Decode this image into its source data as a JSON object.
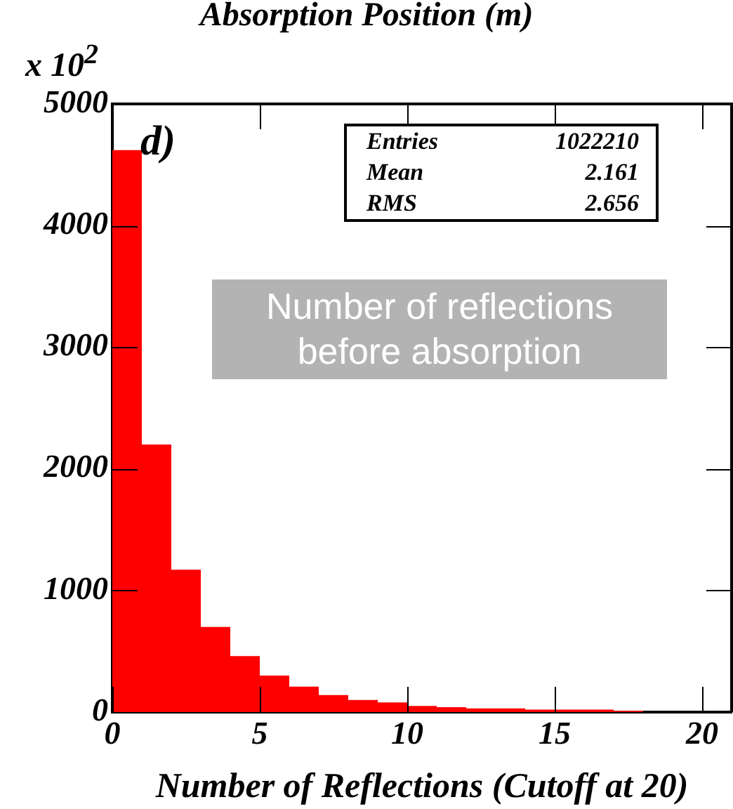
{
  "chart_data": {
    "type": "histogram",
    "title": "Absorption Position (m)",
    "xlabel": "Number of Reflections (Cutoff at 20)",
    "bins": [
      0,
      1,
      2,
      3,
      4,
      5,
      6,
      7,
      8,
      9,
      10,
      11,
      12,
      13,
      14,
      15,
      16,
      17,
      18,
      19,
      20,
      21
    ],
    "values": [
      4620,
      2200,
      1170,
      700,
      460,
      300,
      210,
      140,
      100,
      80,
      50,
      40,
      30,
      30,
      20,
      20,
      20,
      10,
      0,
      0,
      0
    ],
    "color": "#ff0000",
    "xlim": [
      0,
      21
    ],
    "xticks": [
      0,
      5,
      10,
      15,
      20
    ],
    "ylim": [
      0,
      5000
    ],
    "yticks": [
      0,
      1000,
      2000,
      3000,
      4000,
      5000
    ],
    "grid": false,
    "legend": false,
    "annotations": [
      "x 10$^{2}$",
      "d)",
      "Entries",
      "1022210",
      "Mean",
      "2.161",
      "RMS",
      "2.656",
      "Number of reflections before absorption"
    ]
  }
}
